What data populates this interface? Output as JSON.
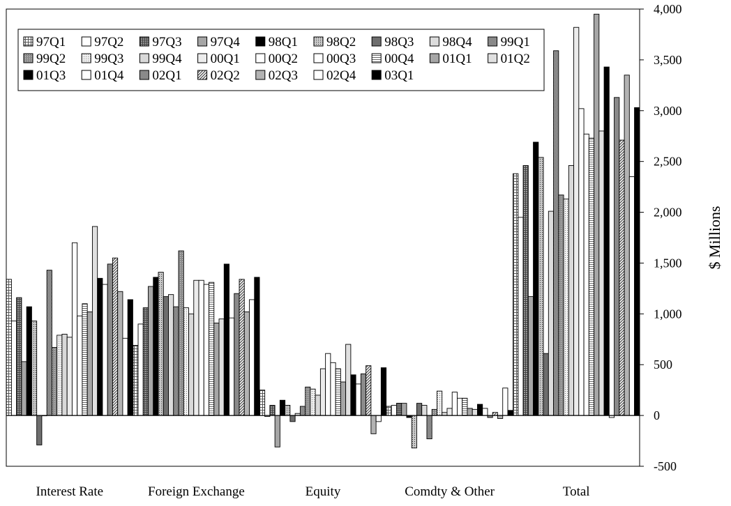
{
  "chart_data": {
    "type": "bar",
    "title": "",
    "xlabel": "",
    "ylabel": "$ Millions",
    "ylim": [
      -500,
      4000
    ],
    "yticks": [
      4000,
      3500,
      3000,
      2500,
      2000,
      1500,
      1000,
      500,
      0,
      -500
    ],
    "ytick_labels": [
      "4,000",
      "3,500",
      "3,000",
      "2,500",
      "2,000",
      "1,500",
      "1,000",
      "500",
      "0",
      "-500"
    ],
    "y_axis_side": "right",
    "grid": false,
    "legend_position": "top-left",
    "legend_columns": 9,
    "categories": [
      "Interest Rate",
      "Foreign Exchange",
      "Equity",
      "Comdty & Other",
      "Total"
    ],
    "series": [
      {
        "name": "97Q1",
        "fill": "p-grid",
        "values": [
          1340,
          690,
          250,
          90,
          2380
        ]
      },
      {
        "name": "97Q2",
        "fill": "#ffffff",
        "values": [
          930,
          900,
          -10,
          100,
          1950
        ]
      },
      {
        "name": "97Q3",
        "fill": "p-finegrid",
        "values": [
          1160,
          1060,
          100,
          120,
          2460
        ]
      },
      {
        "name": "97Q4",
        "fill": "#a6a6a6",
        "values": [
          530,
          1270,
          -310,
          120,
          1170
        ]
      },
      {
        "name": "98Q1",
        "fill": "#000000",
        "values": [
          1070,
          1360,
          150,
          -20,
          2690
        ]
      },
      {
        "name": "98Q2",
        "fill": "p-dense",
        "values": [
          930,
          1410,
          100,
          -320,
          2540
        ]
      },
      {
        "name": "98Q3",
        "fill": "#6e6e6e",
        "values": [
          -290,
          1170,
          -60,
          120,
          610
        ]
      },
      {
        "name": "98Q4",
        "fill": "#dcdcdc",
        "values": [
          0,
          1190,
          20,
          100,
          2010
        ]
      },
      {
        "name": "99Q1",
        "fill": "p-checker",
        "values": [
          1430,
          1070,
          90,
          -230,
          3590
        ]
      },
      {
        "name": "99Q2",
        "fill": "p-dotgray",
        "values": [
          670,
          1620,
          280,
          60,
          2170
        ]
      },
      {
        "name": "99Q3",
        "fill": "p-dots",
        "values": [
          790,
          1060,
          260,
          240,
          2130
        ]
      },
      {
        "name": "99Q4",
        "fill": "#d9d9d9",
        "values": [
          800,
          1000,
          200,
          30,
          2460
        ]
      },
      {
        "name": "00Q1",
        "fill": "#ececec",
        "values": [
          770,
          1330,
          460,
          70,
          3820
        ]
      },
      {
        "name": "00Q2",
        "fill": "#ffffff",
        "values": [
          1700,
          1330,
          610,
          230,
          3020
        ]
      },
      {
        "name": "00Q3",
        "fill": "#ffffff",
        "values": [
          980,
          1290,
          520,
          170,
          2770
        ]
      },
      {
        "name": "00Q4",
        "fill": "p-hstripe",
        "values": [
          1100,
          1310,
          460,
          170,
          2730
        ]
      },
      {
        "name": "01Q1",
        "fill": "#a6a6a6",
        "values": [
          1020,
          910,
          330,
          70,
          3950
        ]
      },
      {
        "name": "01Q2",
        "fill": "#e0e0e0",
        "values": [
          1860,
          950,
          700,
          60,
          2800
        ]
      },
      {
        "name": "01Q3",
        "fill": "#000000",
        "values": [
          1350,
          1490,
          400,
          110,
          3430
        ]
      },
      {
        "name": "01Q4",
        "fill": "#ffffff",
        "values": [
          1290,
          960,
          310,
          70,
          -20
        ]
      },
      {
        "name": "02Q1",
        "fill": "#8a8a8a",
        "values": [
          1490,
          1200,
          410,
          -20,
          3130
        ]
      },
      {
        "name": "02Q2",
        "fill": "p-diag",
        "values": [
          1550,
          1340,
          490,
          30,
          2710
        ]
      },
      {
        "name": "02Q3",
        "fill": "#b3b3b3",
        "values": [
          1220,
          1020,
          -180,
          -30,
          3350
        ]
      },
      {
        "name": "02Q4",
        "fill": "#ffffff",
        "values": [
          760,
          1140,
          -60,
          270,
          2350
        ]
      },
      {
        "name": "03Q1",
        "fill": "#000000",
        "values": [
          1140,
          1360,
          470,
          50,
          3030
        ]
      }
    ]
  }
}
